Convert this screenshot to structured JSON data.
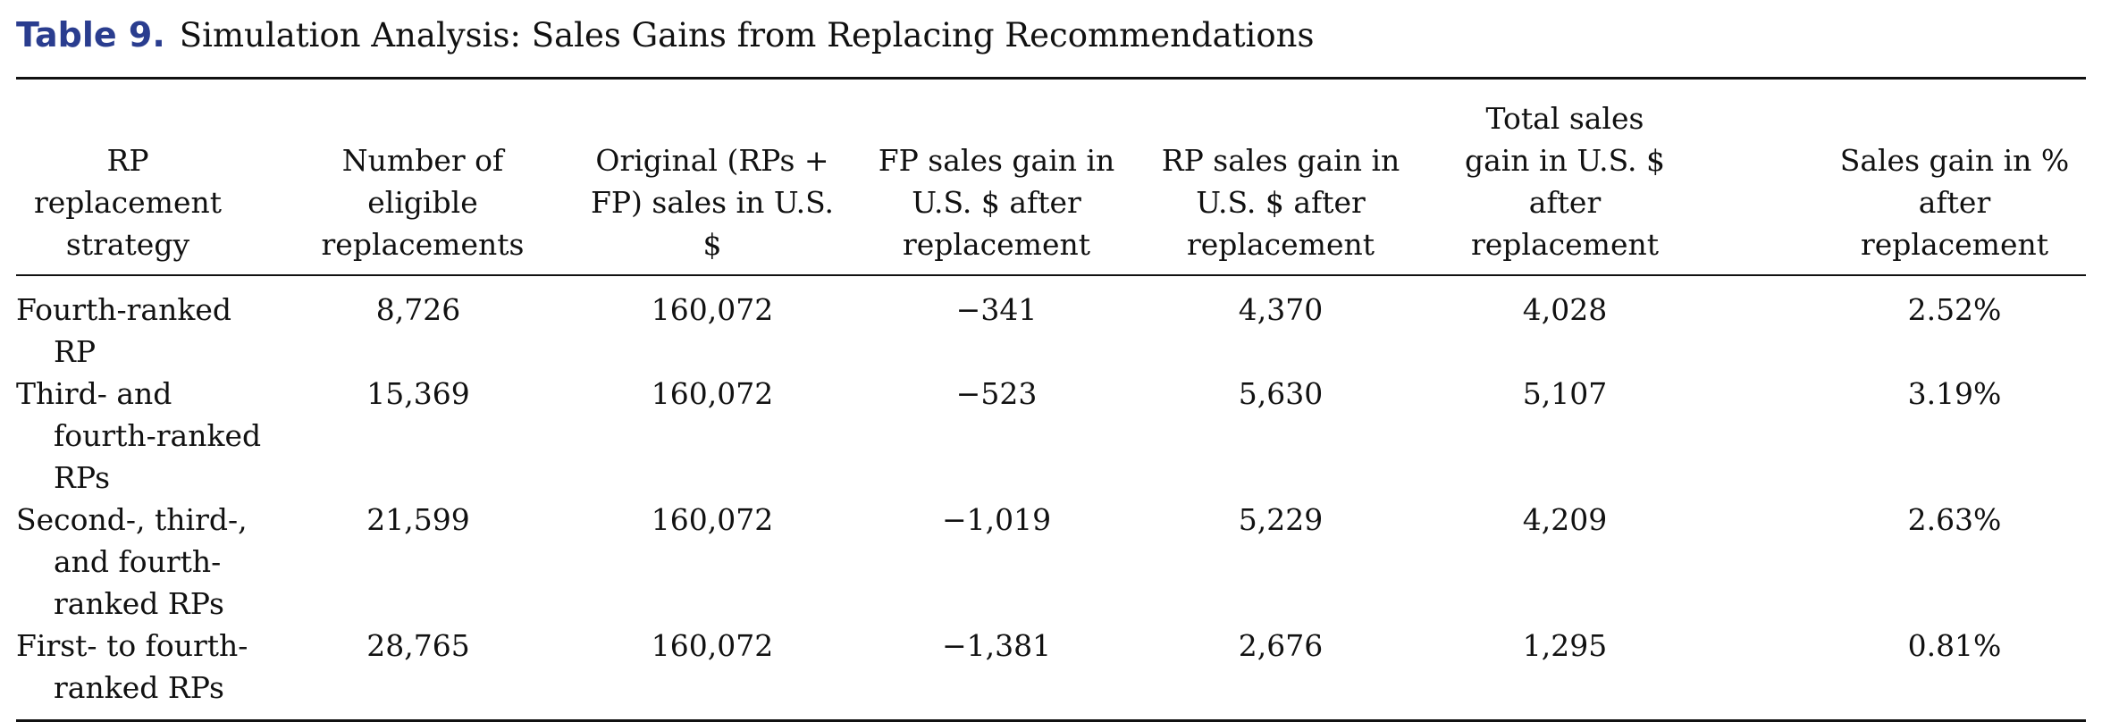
{
  "caption": {
    "label": "Table 9.",
    "title": "Simulation Analysis: Sales Gains from Replacing Recommendations"
  },
  "table": {
    "headers": [
      "RP replacement strategy",
      "Number of eligible replacements",
      "Original (RPs + FP) sales in U.S. $",
      "FP sales gain in U.S. $ after replacement",
      "RP sales gain in U.S. $ after replacement",
      "Total sales gain in U.S. $ after replacement",
      "Sales gain in % after replacement"
    ],
    "rows": [
      [
        "Fourth-ranked RP",
        "8,726",
        "160,072",
        "−341",
        "4,370",
        "4,028",
        "2.52%"
      ],
      [
        "Third- and fourth-ranked RPs",
        "15,369",
        "160,072",
        "−523",
        "5,630",
        "5,107",
        "3.19%"
      ],
      [
        "Second-, third-, and fourth-ranked RPs",
        "21,599",
        "160,072",
        "−1,019",
        "5,229",
        "4,209",
        "2.63%"
      ],
      [
        "First- to fourth-ranked RPs",
        "28,765",
        "160,072",
        "−1,381",
        "2,676",
        "1,295",
        "0.81%"
      ]
    ]
  }
}
